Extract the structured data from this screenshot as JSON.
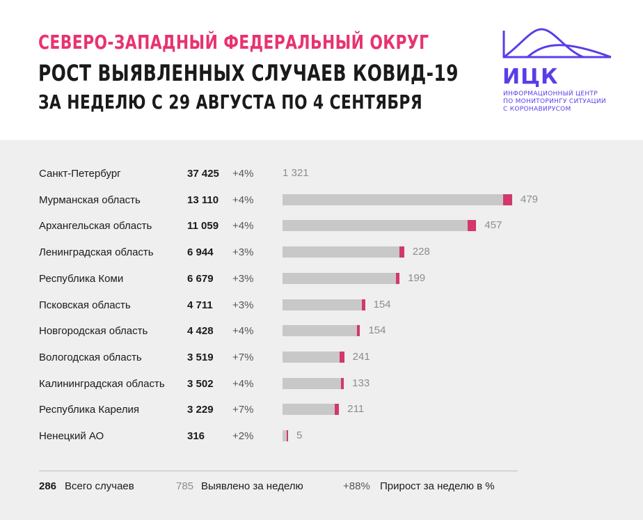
{
  "header": {
    "line1": "СЕВЕРО-ЗАПАДНЫЙ ФЕДЕРАЛЬНЫЙ ОКРУГ",
    "line2": "РОСТ ВЫЯВЛЕННЫХ СЛУЧАЕВ КОВИД-19",
    "line3": "ЗА НЕДЕЛЮ С 29 АВГУСТА ПО 4 СЕНТЯБРЯ"
  },
  "logo": {
    "abbr": "ИЦК",
    "sub1": "ИНФОРМАЦИОННЫЙ ЦЕНТР",
    "sub2": "ПО МОНИТОРИНГУ СИТУАЦИИ",
    "sub3": "С КОРОНАВИРУСОМ",
    "color": "#5b3de8"
  },
  "colors": {
    "accent": "#e8336f",
    "bar_base": "#c8c8c8",
    "bar_new": "#d2386b",
    "panel_bg": "#efefef"
  },
  "chart_data": {
    "type": "bar",
    "orientation": "horizontal",
    "stacked": true,
    "categories": [
      "Санкт-Петербург",
      "Мурманская область",
      "Архангельская область",
      "Ленинградская область",
      "Республика Коми",
      "Псковская область",
      "Новгородская область",
      "Вологодская область",
      "Калининградская область",
      "Республика Карелия",
      "Ненецкий АО"
    ],
    "totals": [
      37425,
      13110,
      11059,
      6944,
      6679,
      4711,
      4428,
      3519,
      3502,
      3229,
      316
    ],
    "totals_text": [
      "37 425",
      "13 110",
      "11 059",
      "6 944",
      "6 679",
      "4 711",
      "4 428",
      "3 519",
      "3 502",
      "3 229",
      "316"
    ],
    "growth_text": [
      "+4%",
      "+4%",
      "+4%",
      "+3%",
      "+3%",
      "+3%",
      "+4%",
      "+7%",
      "+4%",
      "+7%",
      "+2%"
    ],
    "weekly_new": [
      1321,
      479,
      457,
      228,
      199,
      154,
      154,
      241,
      133,
      211,
      5
    ],
    "weekly_new_text": [
      "1 321",
      "479",
      "457",
      "228",
      "199",
      "154",
      "154",
      "241",
      "133",
      "211",
      "5"
    ],
    "grid": false
  },
  "legend": {
    "total_sample": "286",
    "total_label": "Всего случаев",
    "weekly_sample": "785",
    "weekly_label": "Выявлено за неделю",
    "growth_sample": "+88%",
    "growth_label": "Прирост за неделю в %"
  }
}
